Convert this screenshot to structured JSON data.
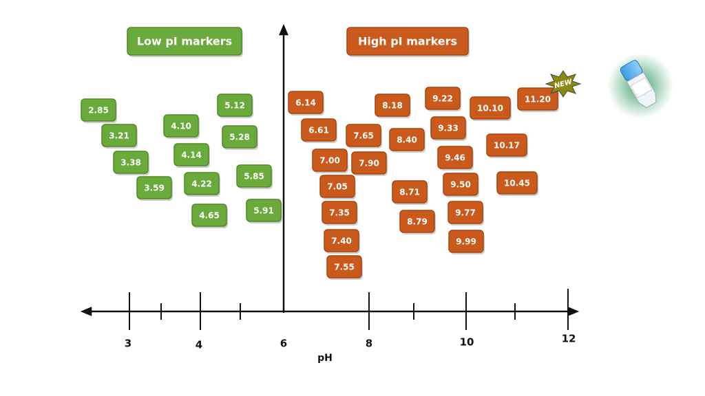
{
  "headers": {
    "low": "Low pI markers",
    "high": "High pI markers"
  },
  "low_markers": [
    "2.85",
    "3.21",
    "3.38",
    "3.59",
    "4.10",
    "4.14",
    "4.22",
    "4.65",
    "5.12",
    "5.28",
    "5.85",
    "5.91"
  ],
  "high_markers": [
    "6.14",
    "6.61",
    "7.00",
    "7.05",
    "7.35",
    "7.40",
    "7.55",
    "7.65",
    "7.90",
    "8.18",
    "8.40",
    "8.71",
    "8.79",
    "9.22",
    "9.33",
    "9.46",
    "9.50",
    "9.77",
    "9.99",
    "10.10",
    "10.17",
    "10.45",
    "11.20"
  ],
  "axis": {
    "ticks": [
      "3",
      "4",
      "6",
      "8",
      "10",
      "12"
    ],
    "label": "pH"
  },
  "badge": "NEW"
}
